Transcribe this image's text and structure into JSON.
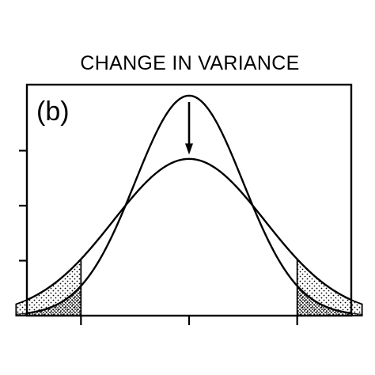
{
  "chart_data": {
    "type": "line",
    "title": "CHANGE IN VARIANCE",
    "panel_label": "(b)",
    "xlabel": "",
    "ylabel": "",
    "xlim": [
      -3,
      3
    ],
    "ylim": [
      0,
      0.42
    ],
    "x_ticks": [
      -2,
      0,
      2
    ],
    "y_ticks": [
      0.1,
      0.2,
      0.3
    ],
    "tick_labels_shown": false,
    "grid": false,
    "series": [
      {
        "mean": 0,
        "sd": 1.0,
        "peak": 0.4
      },
      {
        "mean": 0,
        "sd": 1.4,
        "peak": 0.285
      }
    ],
    "shaded_tails": {
      "x_from": [
        -3.2,
        -2
      ],
      "x_to": [
        2,
        3.2
      ],
      "pattern": "stipple"
    },
    "annotation": {
      "type": "arrow",
      "direction": "down",
      "x": 0,
      "from_y": 0.4,
      "to_y": 0.29
    }
  }
}
